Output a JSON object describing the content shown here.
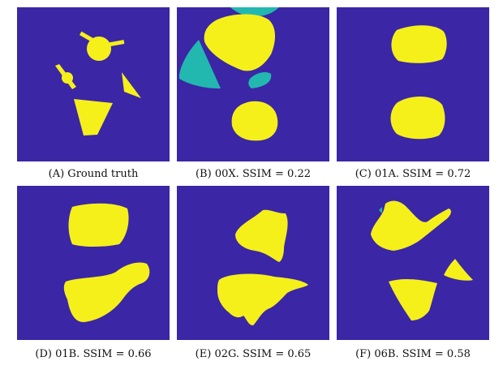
{
  "colors": {
    "background": "#3b26a6",
    "shape": "#f5f01a",
    "teal": "#22b8b0"
  },
  "panels": [
    {
      "caption": "(A) Ground truth"
    },
    {
      "caption": "(B) 00X. SSIM = 0.22"
    },
    {
      "caption": "(C) 01A. SSIM = 0.72"
    },
    {
      "caption": "(D) 01B. SSIM = 0.66"
    },
    {
      "caption": "(E) 02G. SSIM = 0.65"
    },
    {
      "caption": "(F) 06B. SSIM = 0.58"
    }
  ]
}
